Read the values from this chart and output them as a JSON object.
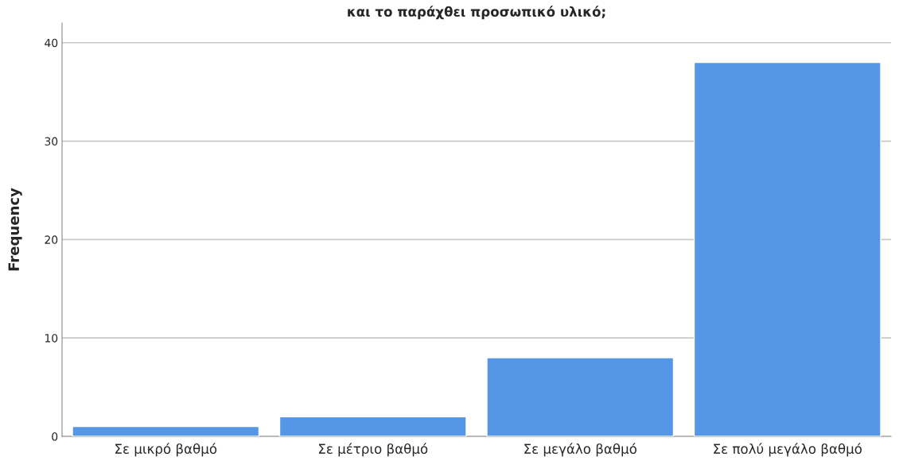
{
  "chart_data": {
    "type": "bar",
    "title": "και το παράχθει προσωπικό υλικό;",
    "ylabel": "Frequency",
    "categories": [
      "Σε μικρό βαθμό",
      "Σε μέτριο βαθμό",
      "Σε μεγάλο βαθμό",
      "Σε πολύ μεγάλο βαθμό"
    ],
    "values": [
      1,
      2,
      8,
      38
    ],
    "color": "#5596e6",
    "ylim": [
      0,
      42
    ],
    "yticks": [
      0,
      10,
      20,
      30,
      40
    ],
    "grid": "y"
  }
}
